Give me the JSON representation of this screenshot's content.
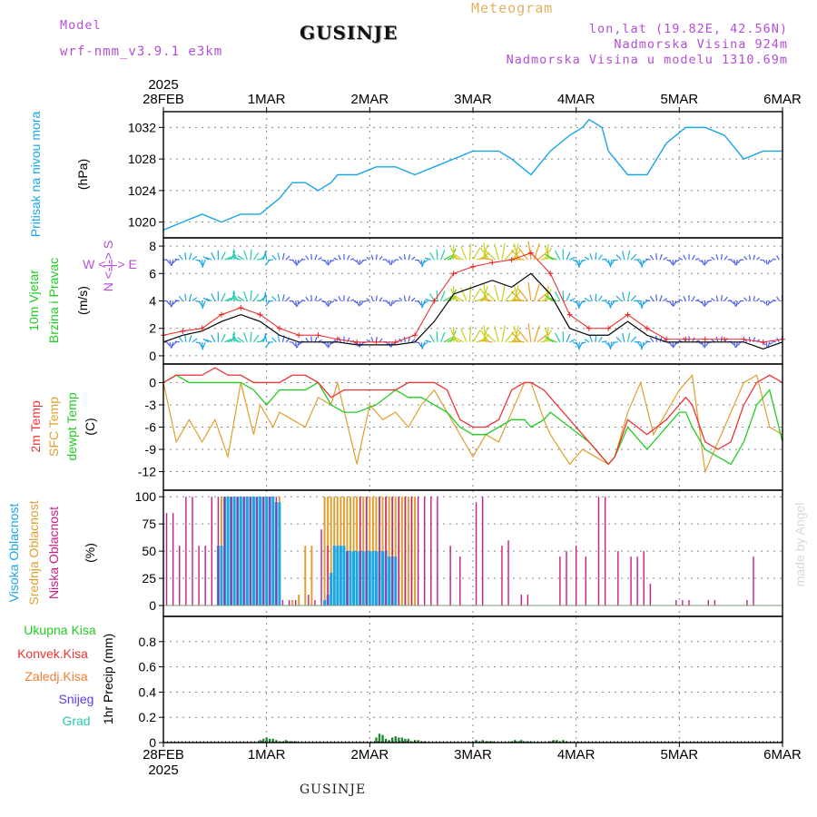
{
  "header": {
    "model_label": "Model",
    "model_name": "wrf-nmm_v3.9.1 e3km",
    "title": "GUSINJE",
    "meteogram": "Meteogram",
    "lonlat": "lon,lat (19.82E, 42.56N)",
    "elevation": "Nadmorska Visina 924m",
    "model_elevation": "Nadmorska Visina u modelu 1310.69m"
  },
  "footer": {
    "location": "GUSINJE",
    "credit": "made by Angel"
  },
  "colors": {
    "pressure": "#1aa6e6",
    "speed": "#000000",
    "gust": "#ee2222",
    "temp2m": "#ee3333",
    "tsfc": "#e0a030",
    "dewpt": "#22cc22",
    "cloud_high": "#1aa6e6",
    "cloud_mid": "#e0a030",
    "cloud_low": "#cc1a88",
    "precip": "#228833",
    "legend_purple": "#b44fd6",
    "meteogram": "#e6b060"
  },
  "axes": {
    "year": "2025",
    "dates": [
      "28FEB",
      "1MAR",
      "2MAR",
      "3MAR",
      "4MAR",
      "5MAR",
      "6MAR"
    ]
  },
  "panels": {
    "pressure": {
      "label1": "Pritisak na nivou mora",
      "unit": "(hPa)"
    },
    "wind": {
      "label1": "10m Vjetar",
      "label2": "Brzina i Pravac",
      "unit": "(m/s)",
      "compass": "W <-|-> E",
      "compass_ns": "N <-|-> S"
    },
    "temp": {
      "label1": "2m Temp",
      "label2": "SFC Temp",
      "label3": "dewpt Temp",
      "unit": "(C)"
    },
    "cloud": {
      "label1": "Visoka Oblacnost",
      "label2": "Srednja Oblacnost",
      "label3": "Niska Oblacnost",
      "unit": "(%)"
    },
    "precip": {
      "legend": [
        "Ukupna Kisa",
        "Konvek.Kisa",
        "Zaledj.Kisa",
        "Snijeg",
        "Grad"
      ],
      "legend_colors": [
        "#22cc22",
        "#ee3333",
        "#f08030",
        "#5a3ae8",
        "#22c8b0"
      ],
      "unit": "1hr Precip (mm)"
    }
  },
  "chart_data": [
    {
      "type": "line",
      "name": "Pritisak na nivou mora",
      "x": [
        0,
        6,
        12,
        18,
        24,
        28,
        30,
        36,
        40,
        44,
        48,
        52,
        54,
        60,
        66,
        72,
        78,
        84,
        90,
        96,
        100,
        104,
        108,
        114,
        120,
        126,
        130,
        132,
        136,
        138,
        144,
        150,
        156,
        162,
        168,
        174,
        180,
        186,
        192
      ],
      "values": [
        1019,
        1020,
        1021,
        1020,
        1021,
        1021,
        1021,
        1023,
        1025,
        1025,
        1024,
        1025,
        1026,
        1026,
        1027,
        1027,
        1026,
        1027,
        1028,
        1029,
        1029,
        1029,
        1028,
        1026,
        1029,
        1031,
        1032,
        1033,
        1032,
        1029,
        1026,
        1026,
        1030,
        1032,
        1032,
        1031,
        1028,
        1029,
        1029
      ],
      "ylim": [
        1018,
        1034
      ],
      "yticks": [
        1020,
        1024,
        1028,
        1032
      ]
    },
    {
      "type": "line",
      "name": "10m Vjetar Brzina",
      "x": [
        0,
        6,
        12,
        18,
        24,
        30,
        36,
        42,
        48,
        54,
        60,
        66,
        72,
        78,
        84,
        90,
        96,
        102,
        108,
        114,
        120,
        126,
        132,
        138,
        144,
        150,
        156,
        162,
        168,
        174,
        180,
        186,
        192
      ],
      "values": [
        1,
        1.5,
        1.8,
        2.5,
        3,
        2.5,
        1.5,
        1,
        1,
        1,
        0.8,
        0.8,
        0.8,
        1,
        2.5,
        4.5,
        5,
        5.5,
        5,
        6,
        4.5,
        2,
        1.5,
        1.5,
        2.5,
        1.5,
        1,
        1,
        1,
        1,
        1,
        0.5,
        1
      ],
      "ylim": [
        -0.6,
        8.6
      ],
      "yticks": [
        0,
        2,
        4,
        6,
        8
      ]
    },
    {
      "type": "line",
      "name": "10m Vjetar Udari",
      "x": [
        0,
        6,
        12,
        18,
        24,
        30,
        36,
        42,
        48,
        54,
        60,
        66,
        72,
        78,
        84,
        90,
        96,
        102,
        108,
        114,
        120,
        126,
        132,
        138,
        144,
        150,
        156,
        162,
        168,
        174,
        180,
        186,
        192
      ],
      "values": [
        1.5,
        1.8,
        2,
        3,
        3.5,
        3,
        2,
        1.5,
        1.5,
        1.2,
        1,
        1,
        1,
        1.5,
        4,
        6,
        6.5,
        6.8,
        7,
        7.5,
        6,
        3,
        2,
        2,
        3,
        2,
        1.2,
        1.2,
        1.2,
        1.2,
        1.2,
        1,
        1.2
      ]
    },
    {
      "type": "line",
      "name": "2m Temp",
      "x": [
        0,
        4,
        8,
        12,
        16,
        20,
        24,
        28,
        32,
        36,
        40,
        44,
        48,
        52,
        56,
        60,
        66,
        72,
        76,
        80,
        84,
        88,
        92,
        96,
        100,
        104,
        108,
        112,
        114,
        118,
        120,
        126,
        132,
        136,
        138,
        140,
        144,
        150,
        156,
        160,
        162,
        164,
        168,
        172,
        176,
        180,
        184,
        188,
        192
      ],
      "values": [
        0,
        1,
        1,
        1,
        2,
        1,
        1,
        0,
        0,
        0,
        1,
        1,
        0,
        -2,
        -1,
        -1,
        -1,
        -1,
        0,
        0,
        0,
        -1,
        -5,
        -6,
        -6,
        -5,
        -1,
        0,
        0,
        -1,
        -2,
        -5,
        -8,
        -10,
        -11,
        -10,
        -5,
        -7,
        -5,
        -3,
        -2,
        -3,
        -8,
        -9,
        -8,
        -3,
        0,
        1,
        0
      ],
      "ylim": [
        -14.5,
        2.5
      ],
      "yticks": [
        -12,
        -9,
        -6,
        -3,
        0
      ]
    },
    {
      "type": "line",
      "name": "SFC Temp",
      "x": [
        0,
        4,
        8,
        12,
        16,
        20,
        24,
        28,
        30,
        34,
        36,
        40,
        44,
        48,
        52,
        54,
        60,
        64,
        68,
        72,
        76,
        80,
        84,
        88,
        92,
        96,
        100,
        104,
        108,
        112,
        114,
        118,
        120,
        126,
        130,
        134,
        138,
        140,
        144,
        148,
        152,
        156,
        160,
        162,
        164,
        168,
        172,
        176,
        180,
        184,
        188,
        192
      ],
      "values": [
        0,
        -8,
        -5,
        -8,
        -5,
        -10,
        0,
        -7,
        -3,
        -6,
        -4,
        -5,
        -6,
        -2,
        -3,
        0,
        -11,
        -3,
        -5,
        -4,
        -6,
        -3,
        -1,
        -4,
        -7,
        -10,
        -7,
        -8,
        -4,
        0,
        0,
        -5,
        -7,
        -11,
        -9,
        -10,
        -11,
        -10,
        -4,
        0,
        -7,
        -4,
        -1,
        0,
        1,
        -12,
        -8,
        -4,
        0,
        1,
        -6,
        -7
      ],
      "ylim": [
        -14.5,
        2.5
      ]
    },
    {
      "type": "line",
      "name": "dewpt Temp",
      "x": [
        0,
        4,
        8,
        12,
        16,
        20,
        24,
        28,
        32,
        36,
        40,
        44,
        48,
        52,
        56,
        60,
        66,
        72,
        76,
        80,
        84,
        88,
        92,
        96,
        100,
        104,
        108,
        112,
        114,
        118,
        120,
        126,
        132,
        136,
        138,
        140,
        144,
        150,
        156,
        160,
        162,
        164,
        168,
        172,
        176,
        180,
        184,
        188,
        192
      ],
      "values": [
        0,
        1,
        0,
        0,
        0,
        0,
        0,
        -1,
        -3,
        -1,
        -1,
        -1,
        0,
        -3,
        -4,
        -4,
        -3,
        -1,
        -2,
        -2,
        -3,
        -4,
        -6,
        -7,
        -7,
        -6,
        -5,
        -5,
        -6,
        -5,
        -4,
        -6,
        -8,
        -10,
        -11,
        -10,
        -6,
        -9,
        -6,
        -4,
        -4,
        -6,
        -9,
        -10,
        -11,
        -8,
        -3,
        -1,
        -8
      ],
      "ylim": [
        -14.5,
        2.5
      ]
    },
    {
      "type": "bar",
      "name": "Oblacnost",
      "ylim": [
        0,
        100
      ],
      "yticks": [
        0,
        25,
        50,
        75,
        100
      ],
      "series": [
        {
          "name": "Visoka Oblacnost",
          "x": [
            17,
            18,
            19,
            20,
            21,
            22,
            23,
            24,
            25,
            26,
            27,
            28,
            29,
            30,
            31,
            32,
            33,
            34,
            35,
            36,
            50,
            51,
            52,
            53,
            54,
            55,
            56,
            57,
            58,
            59,
            60,
            61,
            62,
            63,
            64,
            65,
            66,
            67,
            68,
            69,
            70,
            71,
            72
          ],
          "values": [
            55,
            55,
            100,
            100,
            100,
            100,
            100,
            100,
            100,
            100,
            100,
            100,
            100,
            100,
            100,
            100,
            100,
            100,
            95,
            95,
            5,
            10,
            30,
            55,
            55,
            55,
            55,
            50,
            50,
            50,
            50,
            50,
            50,
            50,
            50,
            50,
            50,
            50,
            50,
            50,
            45,
            45,
            45
          ]
        },
        {
          "name": "Srednja Oblacnost",
          "x": [
            18,
            20,
            22,
            24,
            26,
            28,
            30,
            32,
            34,
            36,
            38,
            40,
            42,
            44,
            46,
            48,
            50,
            51,
            52,
            53,
            54,
            55,
            56,
            57,
            58,
            59,
            60,
            61,
            62,
            63,
            64,
            65,
            66,
            67,
            68,
            69,
            70,
            71,
            72,
            73,
            74,
            75,
            76,
            77,
            78
          ],
          "values": [
            100,
            100,
            100,
            100,
            100,
            100,
            100,
            100,
            100,
            100,
            0,
            5,
            10,
            55,
            55,
            0,
            100,
            100,
            100,
            100,
            100,
            100,
            100,
            100,
            100,
            100,
            100,
            100,
            100,
            100,
            100,
            100,
            100,
            100,
            100,
            100,
            100,
            100,
            100,
            100,
            100,
            100,
            100,
            100,
            100
          ]
        },
        {
          "name": "Niska Oblacnost",
          "x": [
            1,
            3,
            5,
            7,
            9,
            11,
            13,
            15,
            17,
            19,
            21,
            23,
            25,
            27,
            29,
            31,
            33,
            35,
            37,
            39,
            41,
            45,
            47,
            49,
            51,
            57,
            61,
            63,
            67,
            69,
            71,
            73,
            75,
            77,
            79,
            81,
            83,
            85,
            89,
            92,
            97,
            99,
            105,
            107,
            111,
            113,
            123,
            125,
            128,
            131,
            135,
            137,
            141,
            145,
            147,
            149,
            151,
            159,
            161,
            163,
            169,
            171,
            181,
            183,
            187
          ],
          "values": [
            85,
            85,
            55,
            100,
            100,
            55,
            55,
            100,
            100,
            100,
            100,
            100,
            100,
            100,
            100,
            100,
            100,
            100,
            5,
            5,
            5,
            10,
            5,
            70,
            55,
            50,
            100,
            100,
            100,
            100,
            100,
            100,
            100,
            100,
            100,
            100,
            100,
            100,
            55,
            45,
            95,
            100,
            55,
            60,
            10,
            10,
            45,
            50,
            55,
            45,
            100,
            100,
            50,
            45,
            45,
            50,
            20,
            5,
            5,
            5,
            5,
            5,
            5,
            45,
            0
          ]
        }
      ]
    },
    {
      "type": "bar",
      "name": "1hr Precip",
      "x": [
        30,
        31,
        32,
        33,
        34,
        35,
        36,
        37,
        38,
        39,
        40,
        41,
        66,
        67,
        68,
        69,
        70,
        71,
        72,
        73,
        74,
        75,
        76,
        77,
        78,
        79,
        80,
        81,
        96,
        97,
        98,
        99,
        100,
        101,
        102,
        108,
        109,
        110,
        111,
        112,
        113,
        114,
        120,
        121,
        122,
        123,
        124,
        125
      ],
      "values": [
        0.02,
        0.03,
        0.04,
        0.03,
        0.03,
        0.02,
        0.01,
        0.01,
        0.02,
        0.01,
        0.01,
        0.01,
        0.04,
        0.07,
        0.06,
        0.03,
        0.02,
        0.04,
        0.05,
        0.04,
        0.04,
        0.03,
        0.03,
        0.01,
        0.02,
        0.02,
        0.01,
        0.01,
        0.01,
        0.02,
        0.01,
        0.02,
        0.01,
        0.01,
        0.01,
        0.01,
        0.02,
        0.01,
        0.02,
        0.01,
        0.01,
        0.01,
        0.01,
        0.02,
        0.02,
        0.01,
        0.02,
        0.01
      ],
      "ylim": [
        0,
        1
      ],
      "yticks": [
        0,
        0.2,
        0.4,
        0.6,
        0.8
      ]
    }
  ]
}
